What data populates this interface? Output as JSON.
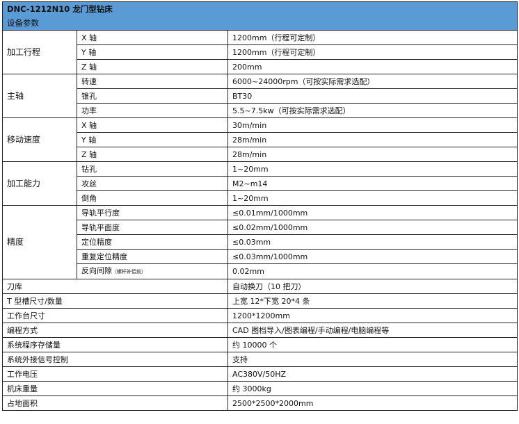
{
  "header": {
    "title": "DNC-1212N10 龙门型钻床",
    "subtitle": "设备参数"
  },
  "groups": [
    {
      "name": "加工行程",
      "rows": [
        [
          "X 轴",
          "1200mm（行程可定制）"
        ],
        [
          "Y 轴",
          "1200mm（行程可定制）"
        ],
        [
          "Z 轴",
          "200mm"
        ]
      ]
    },
    {
      "name": "主轴",
      "rows": [
        [
          "转速",
          "6000~24000rpm（可按实际需求选配）"
        ],
        [
          "锥孔",
          "BT30"
        ],
        [
          "功率",
          "5.5~7.5kw（可按实际需求选配）"
        ]
      ]
    },
    {
      "name": "移动速度",
      "rows": [
        [
          "X 轴",
          "30m/min"
        ],
        [
          "Y 轴",
          "28m/min"
        ],
        [
          "Z 轴",
          "28m/min"
        ]
      ]
    },
    {
      "name": "加工能力",
      "rows": [
        [
          "钻孔",
          "1~20mm"
        ],
        [
          "攻丝",
          "M2~m14"
        ],
        [
          "倒角",
          "1~20mm"
        ]
      ]
    },
    {
      "name": "精度",
      "rows": [
        [
          "导轨平行度",
          "≤0.01mm/1000mm"
        ],
        [
          "导轨平面度",
          "≤0.02mm/1000mm"
        ],
        [
          "定位精度",
          "≤0.03mm"
        ],
        [
          "重复定位精度",
          "≤0.03mm/1000mm"
        ],
        [
          "反向间隙",
          "0.02mm",
          "（螺杆补偿前）"
        ]
      ]
    }
  ],
  "singles": [
    [
      "刀库",
      "自动换刀（10 把刀）"
    ],
    [
      "T 型槽尺寸/数量",
      "上宽 12*下宽 20*4 条"
    ],
    [
      "工作台尺寸",
      "1200*1200mm"
    ],
    [
      "编程方式",
      "CAD 图档导入/图表编程/手动编程/电脑编程等"
    ],
    [
      "系统程序存储量",
      "约 10000 个"
    ],
    [
      "系统外接信号控制",
      "支持"
    ],
    [
      "工作电压",
      "AC380V/50HZ"
    ],
    [
      "机床重量",
      "约 3000kg"
    ],
    [
      "占地面积",
      "2500*2500*2000mm"
    ]
  ],
  "colors": {
    "header_bg": "#5b9bd5",
    "border": "#222222"
  }
}
